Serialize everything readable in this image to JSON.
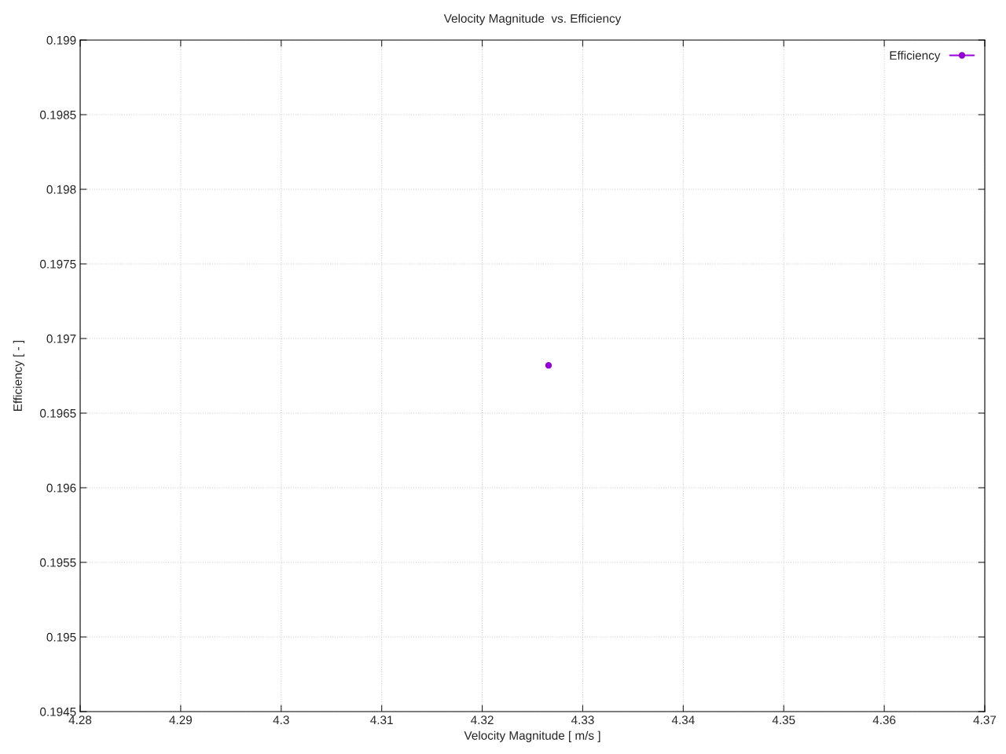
{
  "chart_data": {
    "type": "line",
    "title": "Velocity Magnitude  vs. Efficiency",
    "xlabel": "Velocity Magnitude [ m/s ]",
    "ylabel": "Efficiency [ - ]",
    "x": [
      4.3266
    ],
    "series": [
      {
        "name": "Efficiency",
        "color": "#9400d3",
        "values": [
          0.19682
        ]
      }
    ],
    "xlim": [
      4.28,
      4.37
    ],
    "xticks": [
      4.28,
      4.29,
      4.3,
      4.31,
      4.32,
      4.33,
      4.34,
      4.35,
      4.36,
      4.37
    ],
    "ylim": [
      0.1945,
      0.199
    ],
    "yticks": [
      0.1945,
      0.195,
      0.1955,
      0.196,
      0.1965,
      0.197,
      0.1975,
      0.198,
      0.1985,
      0.199
    ],
    "grid": true,
    "legend": "top right",
    "marker": "circle",
    "line_style": "solid"
  }
}
